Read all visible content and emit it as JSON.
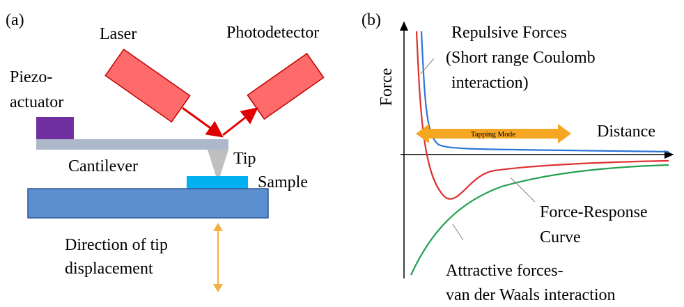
{
  "panel_a": {
    "label": "(a)",
    "laser": "Laser",
    "photodetector": "Photodetector",
    "piezo_actuator": [
      "Piezo-",
      "actuator"
    ],
    "cantilever": "Cantilever",
    "tip": "Tip",
    "sample": "Sample",
    "direction": [
      "Direction of tip",
      "displacement"
    ]
  },
  "panel_b": {
    "label": "(b)",
    "y_axis": "Force",
    "x_axis": "Distance",
    "tapping_mode": "Tapping Mode",
    "repulsive": [
      "Repulsive Forces",
      "(Short range Coulomb",
      "interaction)"
    ],
    "force_response": [
      "Force-Response",
      "Curve"
    ],
    "attractive": [
      "Attractive forces-",
      "van der Waals interaction"
    ]
  }
}
